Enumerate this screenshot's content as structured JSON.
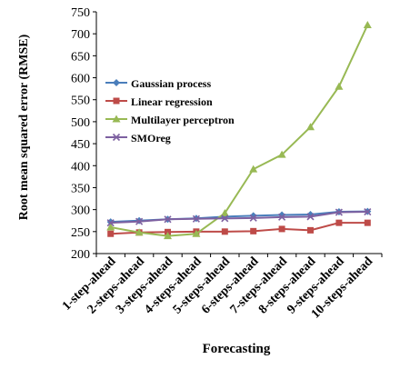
{
  "chart_data": {
    "type": "line",
    "title": "",
    "xlabel": "Forecasting",
    "ylabel": "Root mean squared error (RMSE)",
    "ylim": [
      200,
      750
    ],
    "yticks": [
      200,
      250,
      300,
      350,
      400,
      450,
      500,
      550,
      600,
      650,
      700,
      750
    ],
    "grid": false,
    "legend_position": "top-left",
    "categories": [
      "1-step-ahead",
      "2-steps-ahead",
      "3-steps-ahead",
      "4-steps-ahead",
      "5-steps-ahead",
      "6-steps-ahead",
      "7-steps-ahead",
      "8-steps-ahead",
      "9-steps-ahead",
      "10-steps-ahead"
    ],
    "series": [
      {
        "name": "Gaussian process",
        "color": "#4a7ebb",
        "marker": "diamond",
        "values": [
          272,
          275,
          278,
          280,
          284,
          286,
          288,
          289,
          295,
          296
        ]
      },
      {
        "name": "Linear regression",
        "color": "#be4b48",
        "marker": "square",
        "values": [
          245,
          248,
          249,
          250,
          250,
          251,
          256,
          253,
          270,
          270
        ]
      },
      {
        "name": "Multilayer perceptron",
        "color": "#98b954",
        "marker": "triangle",
        "values": [
          260,
          248,
          240,
          245,
          292,
          392,
          425,
          488,
          580,
          720
        ]
      },
      {
        "name": "SMOreg",
        "color": "#7d60a0",
        "marker": "x",
        "values": [
          270,
          273,
          278,
          279,
          280,
          281,
          283,
          284,
          294,
          295
        ]
      }
    ]
  }
}
